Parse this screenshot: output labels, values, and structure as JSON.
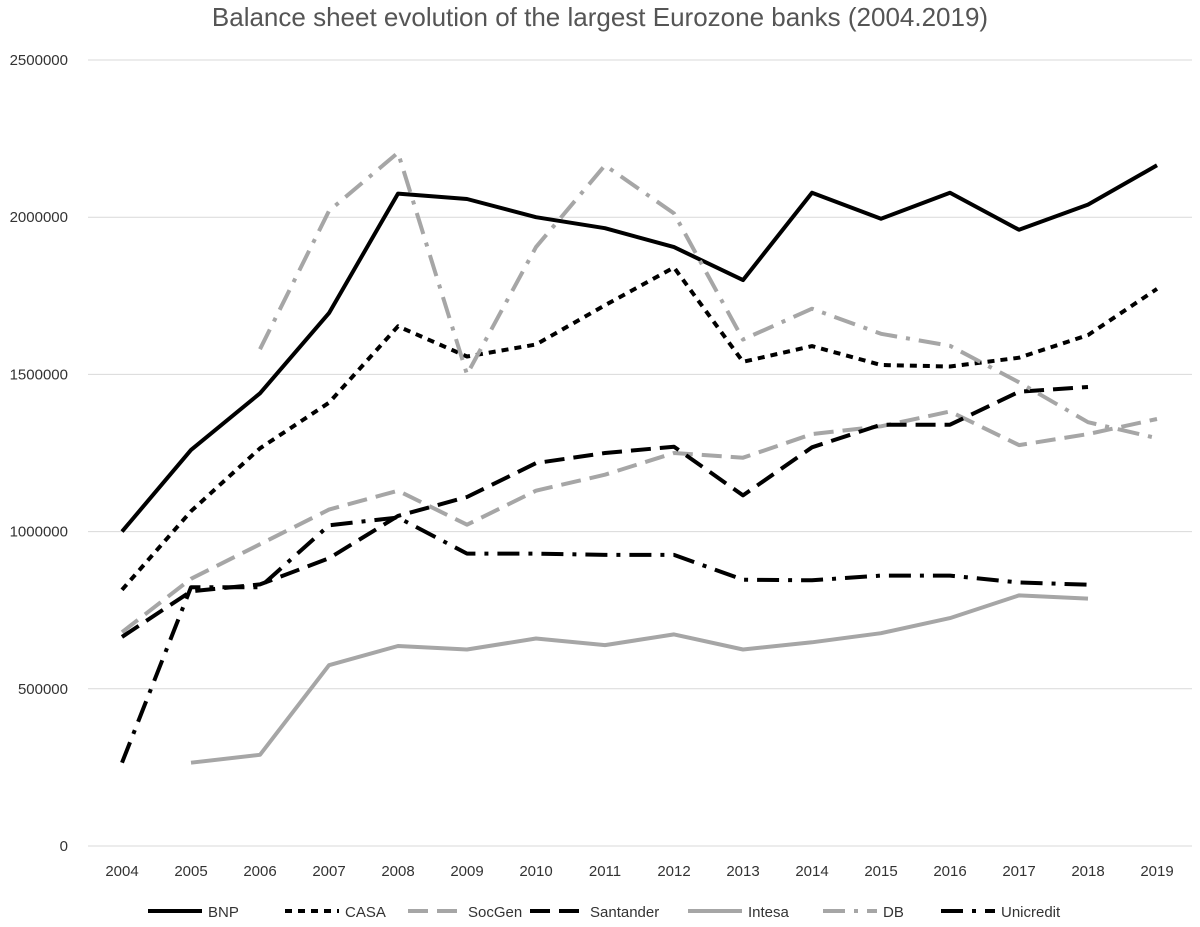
{
  "chart_data": {
    "type": "line",
    "title": "Balance sheet evolution of the largest Eurozone banks (2004.2019)",
    "xlabel": "",
    "ylabel": "",
    "ylim": [
      0,
      2500000
    ],
    "yticks": [
      0,
      500000,
      1000000,
      1500000,
      2000000,
      2500000
    ],
    "ytick_labels": [
      "0",
      "500000",
      "1000000",
      "1500000",
      "2000000",
      "2500000"
    ],
    "categories": [
      "2004",
      "2005",
      "2006",
      "2007",
      "2008",
      "2009",
      "2010",
      "2011",
      "2012",
      "2013",
      "2014",
      "2015",
      "2016",
      "2017",
      "2018",
      "2019"
    ],
    "grid": true,
    "legend_position": "bottom",
    "series": [
      {
        "name": "BNP",
        "color": "#000000",
        "dash": "solid",
        "values": [
          1000000,
          1260000,
          1440000,
          1695000,
          2075000,
          2058000,
          2000000,
          1965000,
          1905000,
          1800000,
          2078000,
          1995000,
          2078000,
          1960000,
          2040000,
          2165000
        ]
      },
      {
        "name": "CASA",
        "color": "#000000",
        "dash": "short",
        "values": [
          815000,
          1065000,
          1265000,
          1410000,
          1653000,
          1557000,
          1595000,
          1720000,
          1840000,
          1540000,
          1590000,
          1530000,
          1525000,
          1553000,
          1625000,
          1772000
        ]
      },
      {
        "name": "SocGen",
        "color": "#a6a6a6",
        "dash": "long",
        "values": [
          680000,
          850000,
          960000,
          1070000,
          1130000,
          1022000,
          1130000,
          1181000,
          1250000,
          1235000,
          1310000,
          1335000,
          1382000,
          1275000,
          1310000,
          1358000
        ]
      },
      {
        "name": "Santander",
        "color": "#000000",
        "dash": "long",
        "values": [
          665000,
          810000,
          832000,
          915000,
          1050000,
          1110000,
          1218000,
          1250000,
          1270000,
          1115000,
          1268000,
          1340000,
          1340000,
          1445000,
          1460000,
          null
        ]
      },
      {
        "name": "Intesa",
        "color": "#a6a6a6",
        "dash": "solid",
        "values": [
          null,
          265000,
          290000,
          575000,
          636000,
          625000,
          660000,
          639000,
          673000,
          625000,
          648000,
          677000,
          725000,
          797000,
          787000,
          null
        ]
      },
      {
        "name": "DB",
        "color": "#a6a6a6",
        "dash": "dashdot",
        "values": [
          null,
          null,
          1580000,
          2020000,
          2205000,
          1500000,
          1905000,
          2165000,
          2012000,
          1611000,
          1709000,
          1629000,
          1591000,
          1475000,
          1348000,
          1297000
        ]
      },
      {
        "name": "Unicredit",
        "color": "#000000",
        "dash": "dashdot",
        "values": [
          265000,
          823000,
          823000,
          1020000,
          1045000,
          930000,
          930000,
          926000,
          926000,
          847000,
          845000,
          860000,
          860000,
          838000,
          831000,
          null
        ]
      }
    ]
  }
}
